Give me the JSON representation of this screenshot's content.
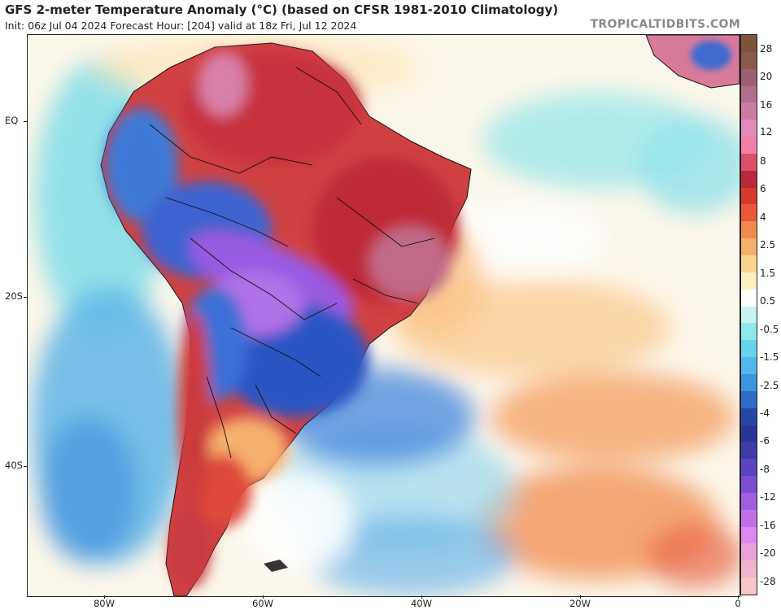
{
  "header": {
    "title": "GFS 2-meter Temperature Anomaly (°C) (based on CFSR 1981-2010 Climatology)",
    "subtitle": "Init: 06z Jul 04 2024   Forecast Hour: [204]   valid at 18z Fri, Jul 12 2024",
    "brand": "TROPICALTIDBITS.COM"
  },
  "axes": {
    "y_ticks": [
      "EQ",
      "20S",
      "40S"
    ],
    "x_ticks": [
      "80W",
      "60W",
      "40W",
      "20W",
      "0"
    ]
  },
  "colorbar": {
    "labels": [
      "28",
      "20",
      "16",
      "12",
      "8",
      "6",
      "4",
      "2.5",
      "1.5",
      "0.5",
      "-0.5",
      "-1.5",
      "-2.5",
      "-4",
      "-6",
      "-8",
      "-12",
      "-16",
      "-20",
      "-28"
    ],
    "colors": [
      "#7a5538",
      "#8a5a4a",
      "#9c6070",
      "#b06f8a",
      "#c97da0",
      "#e08ab8",
      "#f27ea8",
      "#d8506a",
      "#b82a3a",
      "#d63a2c",
      "#e8583a",
      "#f08a4a",
      "#f7b068",
      "#fbd48c",
      "#fdf0c0",
      "#ffffff",
      "#c8f4f0",
      "#8ee8ec",
      "#66d4ea",
      "#52b8ea",
      "#3f94de",
      "#2f6cc8",
      "#2447a6",
      "#2a3590",
      "#3f3aa8",
      "#5a44c0",
      "#7a4ed0",
      "#a05ee0",
      "#c070e8",
      "#dd88ee",
      "#e8a2d8",
      "#f0b4cc",
      "#f8c6c8"
    ]
  },
  "colors": {
    "ocean_base": "#fbf6ea",
    "warm_land": "#c8303c",
    "cold_land": "#2d5bd0",
    "purple_band": "#a85ee4",
    "coast_line": "#111111"
  }
}
